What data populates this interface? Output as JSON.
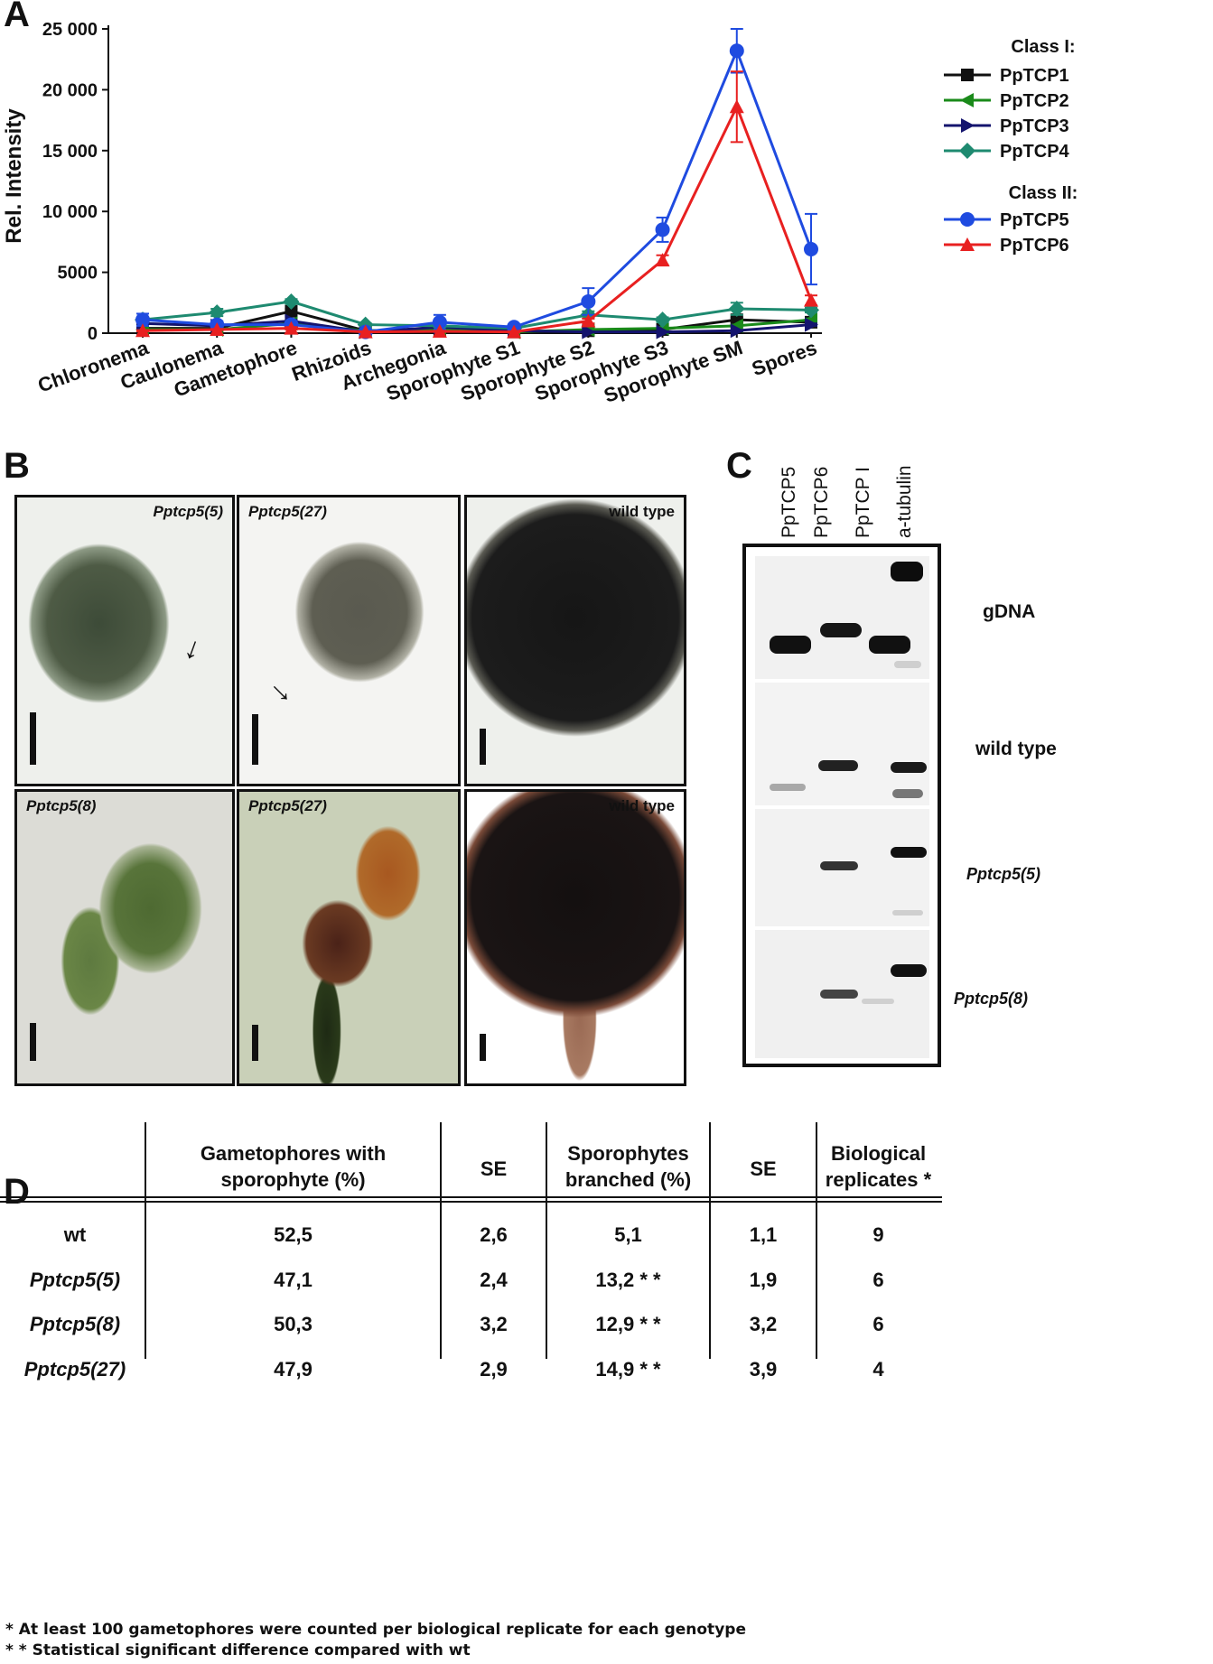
{
  "panel_a": {
    "letter": "A",
    "chart_data": {
      "type": "line",
      "ylabel": "Rel. Intensity",
      "xlabel": "",
      "categories": [
        "Chloronema",
        "Caulonema",
        "Gametophore",
        "Rhizoids",
        "Archegonia",
        "Sporophyte S1",
        "Sporophyte S2",
        "Sporophyte S3",
        "Sporophyte SM",
        "Spores"
      ],
      "ylim": [
        0,
        25000
      ],
      "yticks": [
        "0",
        "5000",
        "10 000",
        "15 000",
        "20 000",
        "25 000"
      ],
      "ytick_values": [
        0,
        5000,
        10000,
        15000,
        20000,
        25000
      ],
      "legend_placement": "right",
      "legend_groups": [
        "Class I:",
        "Class II:"
      ],
      "series": [
        {
          "name": "PpTCP1",
          "group": 0,
          "color": "#111111",
          "marker": "square",
          "values": [
            400,
            400,
            1800,
            200,
            200,
            100,
            200,
            300,
            1100,
            900
          ],
          "err": [
            100,
            100,
            200,
            50,
            50,
            50,
            50,
            50,
            200,
            100
          ]
        },
        {
          "name": "PpTCP2",
          "group": 0,
          "color": "#1a8a1a",
          "marker": "triangle-left",
          "values": [
            300,
            300,
            800,
            200,
            300,
            100,
            300,
            400,
            600,
            1100
          ],
          "err": [
            50,
            50,
            100,
            50,
            50,
            50,
            50,
            50,
            100,
            100
          ]
        },
        {
          "name": "PpTCP3",
          "group": 0,
          "color": "#14146e",
          "marker": "triangle-right",
          "values": [
            800,
            600,
            1000,
            100,
            500,
            200,
            100,
            100,
            200,
            700
          ],
          "err": [
            100,
            100,
            100,
            50,
            100,
            50,
            50,
            50,
            50,
            100
          ]
        },
        {
          "name": "PpTCP4",
          "group": 0,
          "color": "#1e8a70",
          "marker": "diamond",
          "values": [
            1100,
            1700,
            2600,
            700,
            600,
            400,
            1500,
            1100,
            2000,
            1900
          ],
          "err": [
            200,
            300,
            200,
            100,
            100,
            50,
            300,
            200,
            500,
            200
          ]
        },
        {
          "name": "PpTCP5",
          "group": 1,
          "color": "#1f4be0",
          "marker": "circle",
          "values": [
            1100,
            700,
            700,
            100,
            900,
            500,
            2600,
            8500,
            23200,
            6900
          ],
          "err": [
            500,
            300,
            200,
            50,
            600,
            200,
            1100,
            1000,
            1800,
            2900
          ]
        },
        {
          "name": "PpTCP6",
          "group": 1,
          "color": "#e82020",
          "marker": "triangle-up",
          "values": [
            200,
            300,
            400,
            100,
            150,
            100,
            1000,
            6000,
            18600,
            2700
          ],
          "err": [
            50,
            50,
            100,
            50,
            50,
            50,
            200,
            400,
            2900,
            400
          ]
        }
      ]
    }
  },
  "panel_b": {
    "letter": "B",
    "photos": [
      {
        "label": "Pptcp5(5)",
        "italic": true
      },
      {
        "label": "Pptcp5(27)",
        "italic": true
      },
      {
        "label": "wild type",
        "italic": false
      },
      {
        "label": "Pptcp5(8)",
        "italic": true
      },
      {
        "label": "Pptcp5(27)",
        "italic": true
      },
      {
        "label": "wild type",
        "italic": false
      }
    ]
  },
  "panel_c": {
    "letter": "C",
    "lanes": [
      "PpTCP5",
      "PpTCP6",
      "PpTCP I",
      "a-tubulin"
    ],
    "rows": [
      {
        "label": "gDNA",
        "italic": false
      },
      {
        "label": "wild type",
        "italic": false
      },
      {
        "label": "Pptcp5(5)",
        "italic": true
      },
      {
        "label": "Pptcp5(8)",
        "italic": true
      }
    ]
  },
  "panel_d": {
    "letter": "D",
    "headers": [
      {
        "line1": "Gametophores with",
        "line2": "sporophyte (%)"
      },
      {
        "line1": "SE",
        "line2": ""
      },
      {
        "line1": "Sporophytes",
        "line2": "branched (%)"
      },
      {
        "line1": "SE",
        "line2": ""
      },
      {
        "line1": "Biological",
        "line2": "replicates *"
      }
    ],
    "rows": [
      {
        "genotype": "wt",
        "italic": false,
        "cells": [
          "52,5",
          "2,6",
          "5,1",
          "1,1",
          "9"
        ]
      },
      {
        "genotype": "Pptcp5(5)",
        "italic": true,
        "cells": [
          "47,1",
          "2,4",
          "13,2 * *",
          "1,9",
          "6"
        ]
      },
      {
        "genotype": "Pptcp5(8)",
        "italic": true,
        "cells": [
          "50,3",
          "3,2",
          "12,9 * *",
          "3,2",
          "6"
        ]
      },
      {
        "genotype": "Pptcp5(27)",
        "italic": true,
        "cells": [
          "47,9",
          "2,9",
          "14,9 * *",
          "3,9",
          "4"
        ]
      }
    ],
    "footnotes": [
      "* At least 100 gametophores were counted per biological replicate for each genotype",
      "* * Statistical significant difference compared with wt"
    ]
  }
}
